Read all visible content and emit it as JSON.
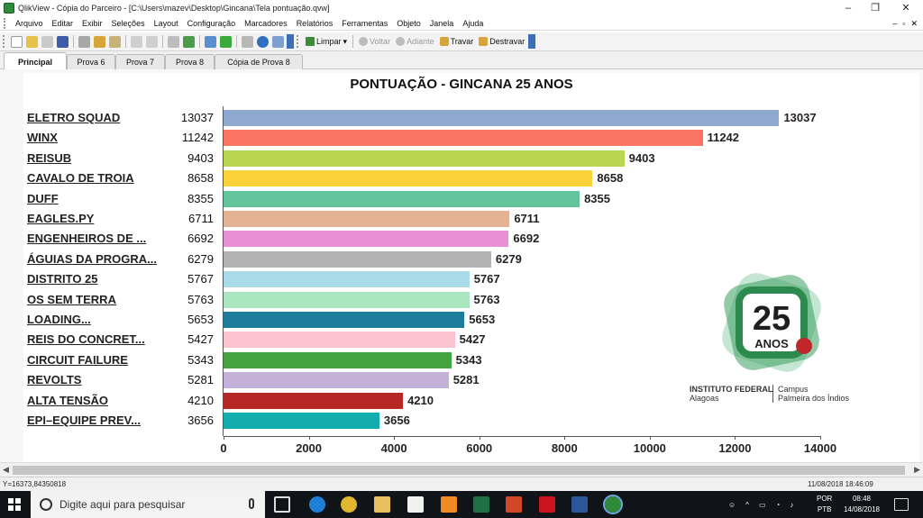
{
  "window": {
    "title": "QlikView - Cópia do Parceiro - [C:\\Users\\mazev\\Desktop\\Gincana\\Tela pontuação.qvw]",
    "controls": [
      "–",
      "❐",
      "✕"
    ]
  },
  "menu": {
    "items": [
      "Arquivo",
      "Editar",
      "Exibir",
      "Seleções",
      "Layout",
      "Configuração",
      "Marcadores",
      "Relatórios",
      "Ferramentas",
      "Objeto",
      "Janela",
      "Ajuda"
    ],
    "right_controls": [
      "–",
      "▫",
      "✕"
    ]
  },
  "toolbar": {
    "limpar": "Limpar",
    "voltar": "Voltar",
    "adiante": "Adiante",
    "travar": "Travar",
    "destravar": "Destravar"
  },
  "tabs": [
    "Principal",
    "Prova 6",
    "Prova 7",
    "Prova 8",
    "Cópia de Prova 8"
  ],
  "active_tab": "Principal",
  "chart_data": {
    "type": "bar",
    "orientation": "horizontal",
    "title": "PONTUAÇÃO - GINCANA 25 ANOS",
    "categories": [
      "ELETRO SQUAD",
      "WINX",
      "REISUB",
      "CAVALO DE TROIA",
      "DUFF",
      "EAGLES.PY",
      "ENGENHEIROS DE ...",
      "ÁGUIAS DA PROGRA...",
      "DISTRITO 25",
      "OS SEM TERRA",
      "LOADING...",
      "REIS DO CONCRET...",
      "CIRCUIT FAILURE",
      "REVOLTS",
      "ALTA TENSÃO",
      "EPI–EQUIPE PREV..."
    ],
    "values": [
      13037,
      11242,
      9403,
      8658,
      8355,
      6711,
      6692,
      6279,
      5767,
      5763,
      5653,
      5427,
      5343,
      5281,
      4210,
      3656
    ],
    "colors": [
      "#8ea9cf",
      "#fa7564",
      "#b8d652",
      "#fcd23a",
      "#62c49a",
      "#e3b394",
      "#e98fd5",
      "#b3b3b3",
      "#a9dbe8",
      "#a9e6c0",
      "#1e7b99",
      "#fac3cf",
      "#44a43f",
      "#c4b1d9",
      "#b52825",
      "#13adad"
    ],
    "xlim": [
      0,
      14000
    ],
    "xticks": [
      0,
      2000,
      4000,
      6000,
      8000,
      10000,
      12000,
      14000
    ],
    "xlabel": "",
    "ylabel": "",
    "grid": false,
    "legend": "none"
  },
  "logo": {
    "number": "25",
    "word": "ANOS",
    "institute": "INSTITUTO FEDERAL",
    "state": "Alagoas",
    "campus": "Campus",
    "campus_name": "Palmeira dos Índios"
  },
  "status": {
    "left": "Y=16373,84350818",
    "right": "11/08/2018 18:46:09"
  },
  "taskbar": {
    "search_placeholder": "Digite aqui para pesquisar",
    "lang_top": "POR",
    "lang_bottom": "PTB",
    "time": "08:48",
    "date": "14/08/2018"
  }
}
